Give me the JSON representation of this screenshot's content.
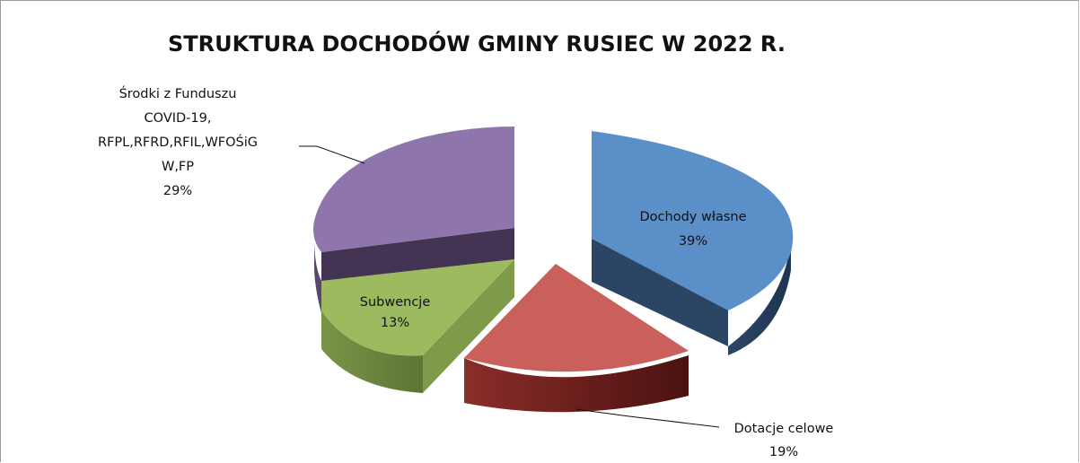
{
  "chart_data": {
    "type": "pie",
    "title": "STRUKTURA DOCHODÓW GMINY RUSIEC W 2022 R.",
    "slices": [
      {
        "label_lines": [
          "Dochody własne"
        ],
        "value_label": "39%",
        "value": 39,
        "color": "#5b8fc8"
      },
      {
        "label_lines": [
          "Dotacje celowe"
        ],
        "value_label": "19%",
        "value": 19,
        "color": "#c9605b"
      },
      {
        "label_lines": [
          "Subwencje"
        ],
        "value_label": "13%",
        "value": 13,
        "color": "#9eba5e"
      },
      {
        "label_lines": [
          "Środki z Funduszu",
          "COVID-19,",
          "RFPL,RFRD,RFIL,WFOŚiG",
          "W,FP"
        ],
        "value_label": "29%",
        "value": 29,
        "color": "#8e76ad"
      }
    ],
    "exploded": true,
    "three_d": true,
    "legend": "none",
    "data_labels": "category and percentage"
  }
}
